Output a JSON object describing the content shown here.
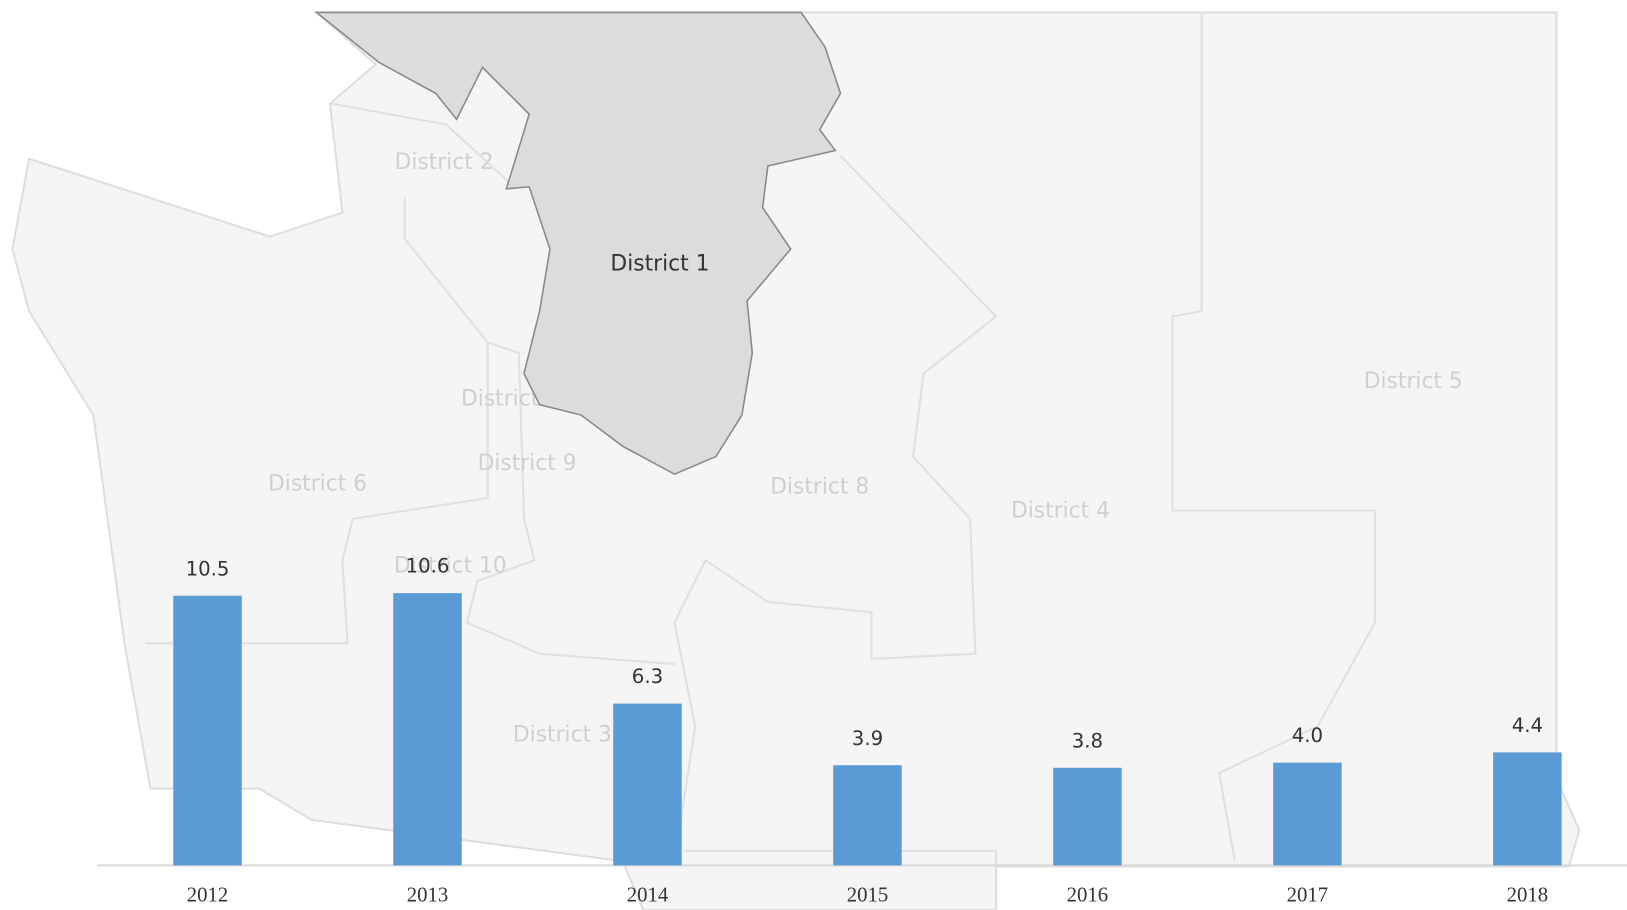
{
  "map": {
    "districts": [
      {
        "label": "District 2"
      },
      {
        "label": "District 7"
      },
      {
        "label": "District 9"
      },
      {
        "label": "District 6"
      },
      {
        "label": "District 10"
      },
      {
        "label": "District 3"
      },
      {
        "label": "District 8"
      },
      {
        "label": "District 4"
      },
      {
        "label": "District 5"
      },
      {
        "label": "District 1"
      }
    ]
  },
  "chart_data": {
    "type": "bar",
    "categories": [
      "2012",
      "2013",
      "2014",
      "2015",
      "2016",
      "2017",
      "2018"
    ],
    "values": [
      10.5,
      10.6,
      6.3,
      3.9,
      3.8,
      4.0,
      4.4
    ],
    "value_labels": [
      "10.5",
      "10.6",
      "6.3",
      "3.9",
      "3.8",
      "4.0",
      "4.4"
    ],
    "color": "#5b9bd5",
    "ylim": [
      0,
      12
    ]
  }
}
